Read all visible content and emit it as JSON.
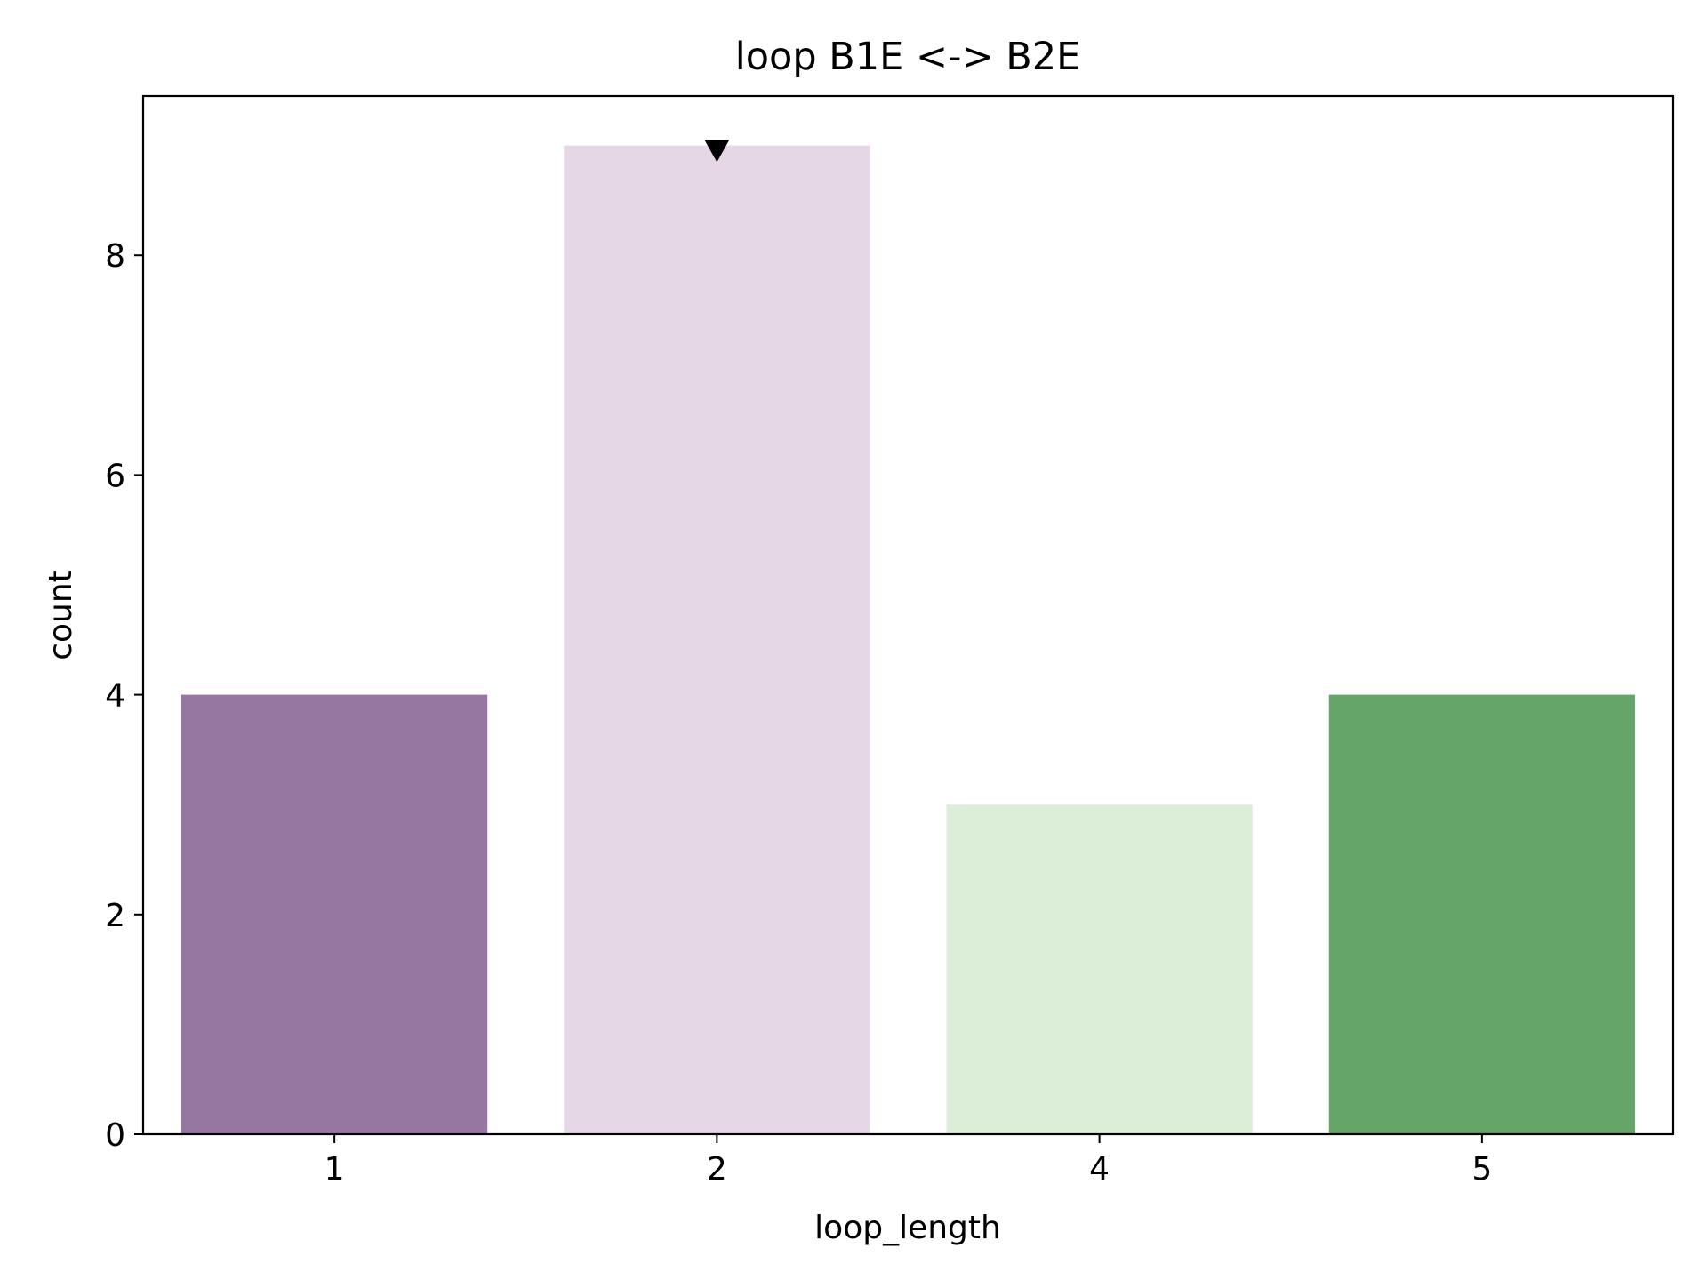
{
  "chart_data": {
    "type": "bar",
    "title": "loop B1E <-> B2E",
    "xlabel": "loop_length",
    "ylabel": "count",
    "categories": [
      "1",
      "2",
      "4",
      "5"
    ],
    "values": [
      4,
      9,
      3,
      4
    ],
    "bar_colors": [
      "#9677a2",
      "#e5d7e6",
      "#dcedd8",
      "#66a56a"
    ],
    "ylim": [
      0,
      9.45
    ],
    "yticks": [
      0,
      2,
      4,
      6,
      8
    ],
    "marker": {
      "category": "2",
      "value": 8.95,
      "shape": "triangle-down",
      "color": "#000000"
    },
    "grid": false,
    "legend": "none"
  }
}
